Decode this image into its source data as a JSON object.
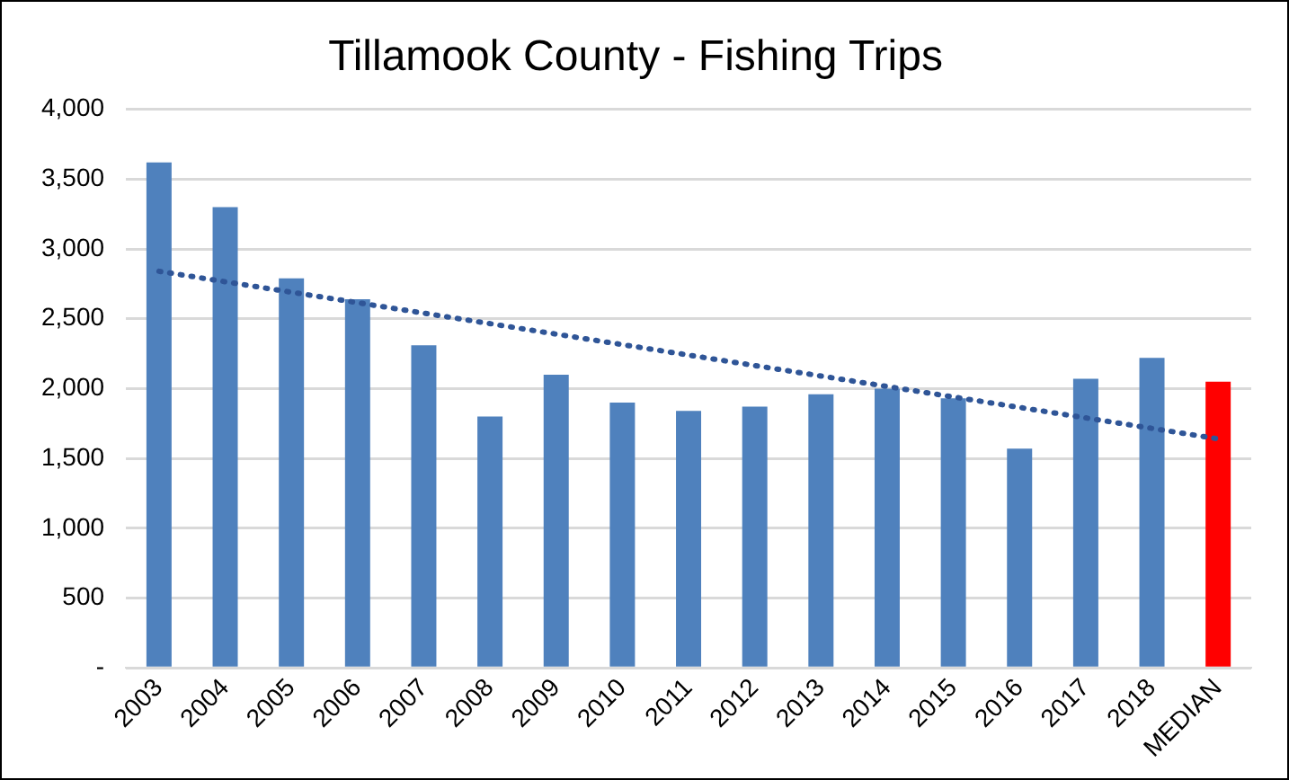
{
  "chart_data": {
    "type": "bar",
    "title": "Tillamook County - Fishing Trips",
    "categories": [
      "2003",
      "2004",
      "2005",
      "2006",
      "2007",
      "2008",
      "2009",
      "2010",
      "2011",
      "2012",
      "2013",
      "2014",
      "2015",
      "2016",
      "2017",
      "2018",
      "MEDIAN"
    ],
    "series": [
      {
        "values": [
          3620,
          3300,
          2790,
          2640,
          2310,
          1800,
          2100,
          1900,
          1840,
          1870,
          1960,
          2000,
          1930,
          1570,
          2070,
          2220,
          2050
        ],
        "colors": [
          "#4f81bd",
          "#4f81bd",
          "#4f81bd",
          "#4f81bd",
          "#4f81bd",
          "#4f81bd",
          "#4f81bd",
          "#4f81bd",
          "#4f81bd",
          "#4f81bd",
          "#4f81bd",
          "#4f81bd",
          "#4f81bd",
          "#4f81bd",
          "#4f81bd",
          "#4f81bd",
          "#ff0000"
        ]
      },
      {
        "type": "line",
        "values": [
          2840,
          null,
          null,
          null,
          null,
          null,
          null,
          null,
          null,
          null,
          null,
          null,
          null,
          null,
          null,
          null,
          1640
        ],
        "color": "#2f5597",
        "line_style": "dotted",
        "marker": "none"
      }
    ],
    "ylim": [
      0,
      4000
    ],
    "yticks": [
      {
        "value": 0,
        "label": "-"
      },
      {
        "value": 500,
        "label": "500"
      },
      {
        "value": 1000,
        "label": "1,000"
      },
      {
        "value": 1500,
        "label": "1,500"
      },
      {
        "value": 2000,
        "label": "2,000"
      },
      {
        "value": 2500,
        "label": "2,500"
      },
      {
        "value": 3000,
        "label": "3,000"
      },
      {
        "value": 3500,
        "label": "3,500"
      },
      {
        "value": 4000,
        "label": "4,000"
      }
    ],
    "grid": "y",
    "legend": false
  }
}
